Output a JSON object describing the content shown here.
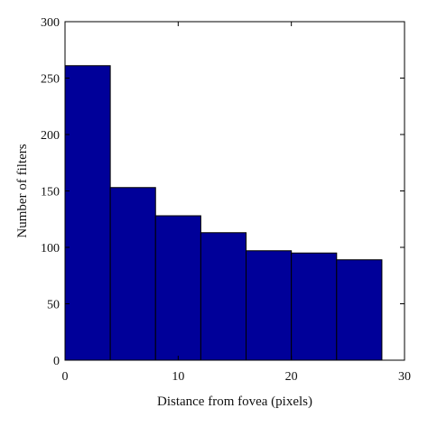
{
  "chart_data": {
    "type": "bar",
    "bin_edges": [
      0,
      4,
      8,
      12,
      16,
      20,
      24,
      28
    ],
    "values": [
      261,
      153,
      128,
      113,
      97,
      95,
      89
    ],
    "xlabel": "Distance from fovea (pixels)",
    "ylabel": "Number of filters",
    "xlim": [
      0,
      30
    ],
    "ylim": [
      0,
      300
    ],
    "xticks": [
      0,
      10,
      20,
      30
    ],
    "yticks": [
      0,
      50,
      100,
      150,
      200,
      250,
      300
    ],
    "grid": false,
    "legend": "none",
    "bar_color": "#000099",
    "edge_color": "#000000"
  }
}
